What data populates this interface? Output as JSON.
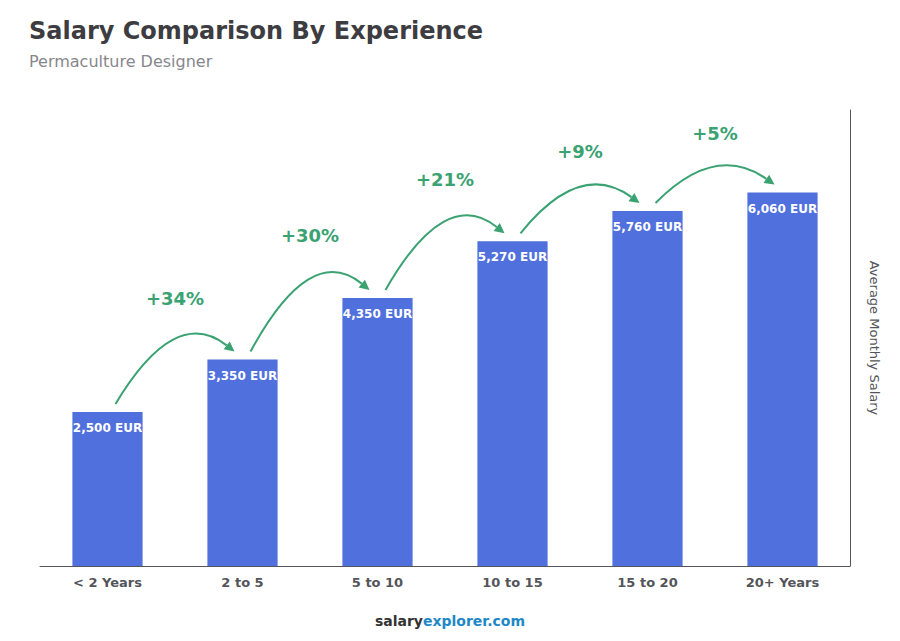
{
  "chart_data": {
    "type": "bar",
    "title": "Salary Comparison By Experience",
    "subtitle": "Permaculture Designer",
    "ylabel": "Average Monthly Salary",
    "footer": [
      "salary",
      "explorer.com"
    ],
    "categories": [
      "< 2 Years",
      "2 to 5",
      "5 to 10",
      "10 to 15",
      "15 to 20",
      "20+ Years"
    ],
    "values": [
      2500,
      3350,
      4350,
      5270,
      5760,
      6060
    ],
    "value_labels": [
      "2,500 EUR",
      "3,350 EUR",
      "4,350 EUR",
      "5,270 EUR",
      "5,760 EUR",
      "6,060 EUR"
    ],
    "data_labels": true,
    "annotations": [
      "+34%",
      "+30%",
      "+21%",
      "+9%",
      "+5%"
    ],
    "ylim": [
      0,
      7400
    ],
    "tick_labels": "x",
    "grid": false
  }
}
